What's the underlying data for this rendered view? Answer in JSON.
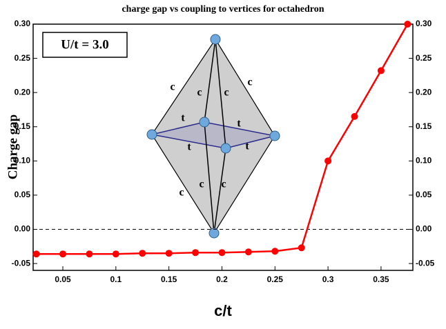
{
  "chart_data": {
    "type": "line",
    "title": "charge gap vs coupling to vertices for octahedron",
    "x_label": "c/t",
    "y_label": "Charge gap",
    "annotation": "U/t = 3.0",
    "inset_labels": {
      "c": "c",
      "t": "t"
    },
    "x": [
      0.025,
      0.05,
      0.075,
      0.1,
      0.125,
      0.15,
      0.175,
      0.2,
      0.225,
      0.25,
      0.275,
      0.3,
      0.325,
      0.35,
      0.375
    ],
    "series": [
      {
        "color": "#ff0000",
        "values": [
          -0.036,
          -0.036,
          -0.036,
          -0.036,
          -0.035,
          -0.035,
          -0.034,
          -0.034,
          -0.033,
          -0.032,
          -0.027,
          0.1,
          0.165,
          0.232,
          0.3
        ]
      }
    ],
    "xlim": [
      0.022,
      0.38
    ],
    "xticks": [
      0.05,
      0.1,
      0.15,
      0.2,
      0.25,
      0.3,
      0.35
    ],
    "ylim": [
      -0.06,
      0.3
    ],
    "yticks": [
      {
        "value": -0.05,
        "label": "-0.05"
      },
      {
        "value": 0,
        "label": "0.00"
      },
      0.05,
      {
        "value": 0.1,
        "label": "0.10"
      },
      0.15,
      {
        "value": 0.2,
        "label": "0.20"
      },
      0.25,
      {
        "value": 0.3,
        "label": "0.30"
      }
    ],
    "reference_line": 0,
    "mirror_y_axis": true
  }
}
